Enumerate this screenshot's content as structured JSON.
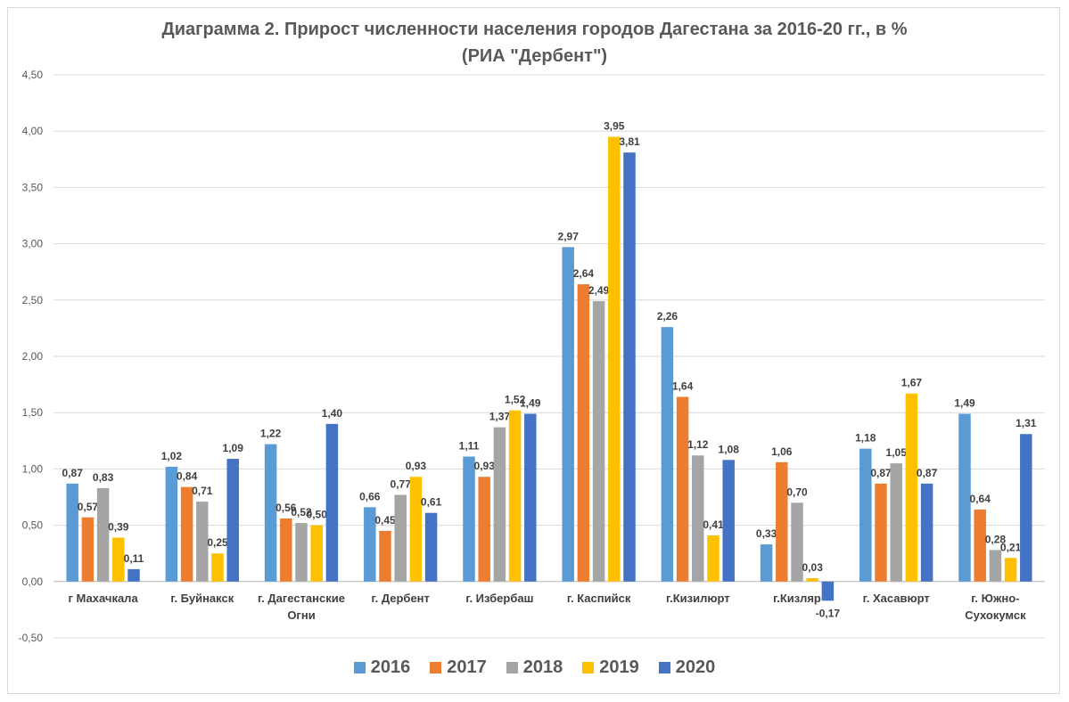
{
  "chart_data": {
    "type": "bar",
    "title": "Диаграмма 2. Прирост численности населения городов Дагестана за 2016-20 гг., в %",
    "subtitle": "(РИА \"Дербент\")",
    "categories": [
      [
        "г Махачкала"
      ],
      [
        "г. Буйнакск"
      ],
      [
        "г. Дагестанские",
        "Огни"
      ],
      [
        "г. Дербент"
      ],
      [
        "г. Избербаш"
      ],
      [
        "г. Каспийск"
      ],
      [
        "г.Кизилюрт"
      ],
      [
        "г.Кизляр"
      ],
      [
        "г. Хасавюрт"
      ],
      [
        "г. Южно-",
        "Сухокумск"
      ]
    ],
    "series": [
      {
        "name": "2016",
        "color": "#5b9bd5",
        "values": [
          0.87,
          1.02,
          1.22,
          0.66,
          1.11,
          2.97,
          2.26,
          0.33,
          1.18,
          1.49
        ],
        "labels": [
          "0,87",
          "1,02",
          "1,22",
          "0,66",
          "1,11",
          "2,97",
          "2,26",
          "0,33",
          "1,18",
          "1,49"
        ]
      },
      {
        "name": "2017",
        "color": "#ed7d31",
        "values": [
          0.57,
          0.84,
          0.56,
          0.45,
          0.93,
          2.64,
          1.64,
          1.06,
          0.87,
          0.64
        ],
        "labels": [
          "0,57",
          "0,84",
          "0,56",
          "0,45",
          "0,93",
          "2,64",
          "1,64",
          "1,06",
          "0,87",
          "0,64"
        ]
      },
      {
        "name": "2018",
        "color": "#a5a5a5",
        "values": [
          0.83,
          0.71,
          0.52,
          0.77,
          1.37,
          2.49,
          1.12,
          0.7,
          1.05,
          0.28
        ],
        "labels": [
          "0,83",
          "0,71",
          "0,52",
          "0,77",
          "1,37",
          "2,49",
          "1,12",
          "0,70",
          "1,05",
          "0,28"
        ]
      },
      {
        "name": "2019",
        "color": "#ffc000",
        "values": [
          0.39,
          0.25,
          0.5,
          0.93,
          1.52,
          3.95,
          0.41,
          0.03,
          1.67,
          0.21
        ],
        "labels": [
          "0,39",
          "0,25",
          "0,50",
          "0,93",
          "1,52",
          "3,95",
          "0,41",
          "0,03",
          "1,67",
          "0,21"
        ]
      },
      {
        "name": "2020",
        "color": "#4472c4",
        "values": [
          0.11,
          1.09,
          1.4,
          0.61,
          1.49,
          3.81,
          1.08,
          -0.17,
          0.87,
          1.31
        ],
        "labels": [
          "0,11",
          "1,09",
          "1,40",
          "0,61",
          "1,49",
          "3,81",
          "1,08",
          "-0,17",
          "0,87",
          "1,31"
        ]
      }
    ],
    "y_ticks": [
      "4,50",
      "4,00",
      "3,50",
      "3,00",
      "2,50",
      "2,00",
      "1,50",
      "1,00",
      "0,50",
      "0,00",
      "-0,50"
    ],
    "ylim": [
      -0.5,
      4.5
    ],
    "grid": true,
    "legend": "bottom"
  }
}
